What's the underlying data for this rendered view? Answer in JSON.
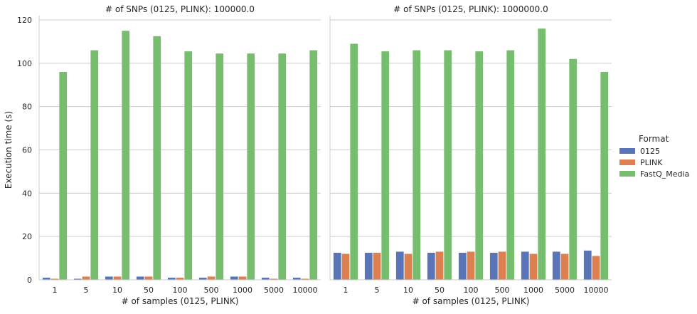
{
  "chart_data": [
    {
      "type": "bar",
      "title": "# of SNPs (0125, PLINK): 100000.0",
      "xlabel": "# of samples (0125, PLINK)",
      "ylabel": "Execution time (s)",
      "ylim": [
        0,
        120
      ],
      "yticks": [
        0,
        20,
        40,
        60,
        80,
        100,
        120
      ],
      "grid": true,
      "categories": [
        "1",
        "5",
        "10",
        "50",
        "100",
        "500",
        "1000",
        "5000",
        "10000"
      ],
      "series": [
        {
          "name": "0125",
          "color": "#5975b8",
          "values": [
            1.0,
            0.5,
            1.5,
            1.5,
            1.0,
            1.0,
            1.5,
            1.0,
            1.0
          ]
        },
        {
          "name": "PLINK",
          "color": "#dc8052",
          "values": [
            0.5,
            1.5,
            1.5,
            1.5,
            1.0,
            1.5,
            1.5,
            0.5,
            0.5
          ]
        },
        {
          "name": "FastQ_Media",
          "color": "#76be6d",
          "values": [
            96,
            106,
            115,
            112.5,
            105.5,
            104.5,
            104.5,
            104.5,
            106
          ]
        }
      ]
    },
    {
      "type": "bar",
      "title": "# of SNPs (0125, PLINK): 1000000.0",
      "xlabel": "# of samples (0125, PLINK)",
      "ylabel": "",
      "ylim": [
        0,
        120
      ],
      "yticks": [
        0,
        20,
        40,
        60,
        80,
        100,
        120
      ],
      "grid": true,
      "categories": [
        "1",
        "5",
        "10",
        "50",
        "100",
        "500",
        "1000",
        "5000",
        "10000"
      ],
      "series": [
        {
          "name": "0125",
          "color": "#5975b8",
          "values": [
            12.5,
            12.5,
            13,
            12.5,
            12.5,
            12.5,
            13,
            13,
            13.5
          ]
        },
        {
          "name": "PLINK",
          "color": "#dc8052",
          "values": [
            12,
            12.5,
            12,
            13,
            13,
            13,
            12,
            12,
            11
          ]
        },
        {
          "name": "FastQ_Media",
          "color": "#76be6d",
          "values": [
            109,
            105.5,
            106,
            106,
            105.5,
            106,
            116,
            102,
            96
          ]
        }
      ]
    }
  ],
  "legend": {
    "title": "Format",
    "placement": "right",
    "items": [
      {
        "label": "0125",
        "color": "#5975b8"
      },
      {
        "label": "PLINK",
        "color": "#dc8052"
      },
      {
        "label": "FastQ_Media",
        "color": "#76be6d"
      }
    ]
  }
}
